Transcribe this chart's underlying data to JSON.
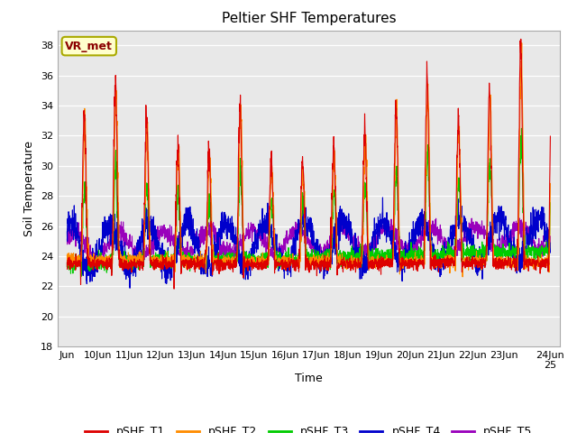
{
  "title": "Peltier SHF Temperatures",
  "xlabel": "Time",
  "ylabel": "Soil Temperature",
  "ylim": [
    18,
    39
  ],
  "yticks": [
    18,
    20,
    22,
    24,
    26,
    28,
    30,
    32,
    34,
    36,
    38
  ],
  "x_tick_labels": [
    "Jun",
    "10Jun",
    "11Jun",
    "12Jun",
    "13Jun",
    "14Jun",
    "15Jun",
    "16Jun",
    "17Jun",
    "18Jun",
    "19Jun",
    "20Jun",
    "21Jun",
    "22Jun",
    "23Jun",
    "24Jun 25"
  ],
  "annotation_text": "VR_met",
  "bg_color": "#e8e8e8",
  "fig_bg": "#ffffff",
  "colors": {
    "pSHF_T1": "#dd0000",
    "pSHF_T2": "#ff8c00",
    "pSHF_T3": "#00cc00",
    "pSHF_T4": "#0000cc",
    "pSHF_T5": "#9900bb"
  },
  "legend_labels": [
    "pSHF_T1",
    "pSHF_T2",
    "pSHF_T3",
    "pSHF_T4",
    "pSHF_T5"
  ],
  "n_days": 15.5,
  "pts_per_day": 144,
  "seed": 17
}
